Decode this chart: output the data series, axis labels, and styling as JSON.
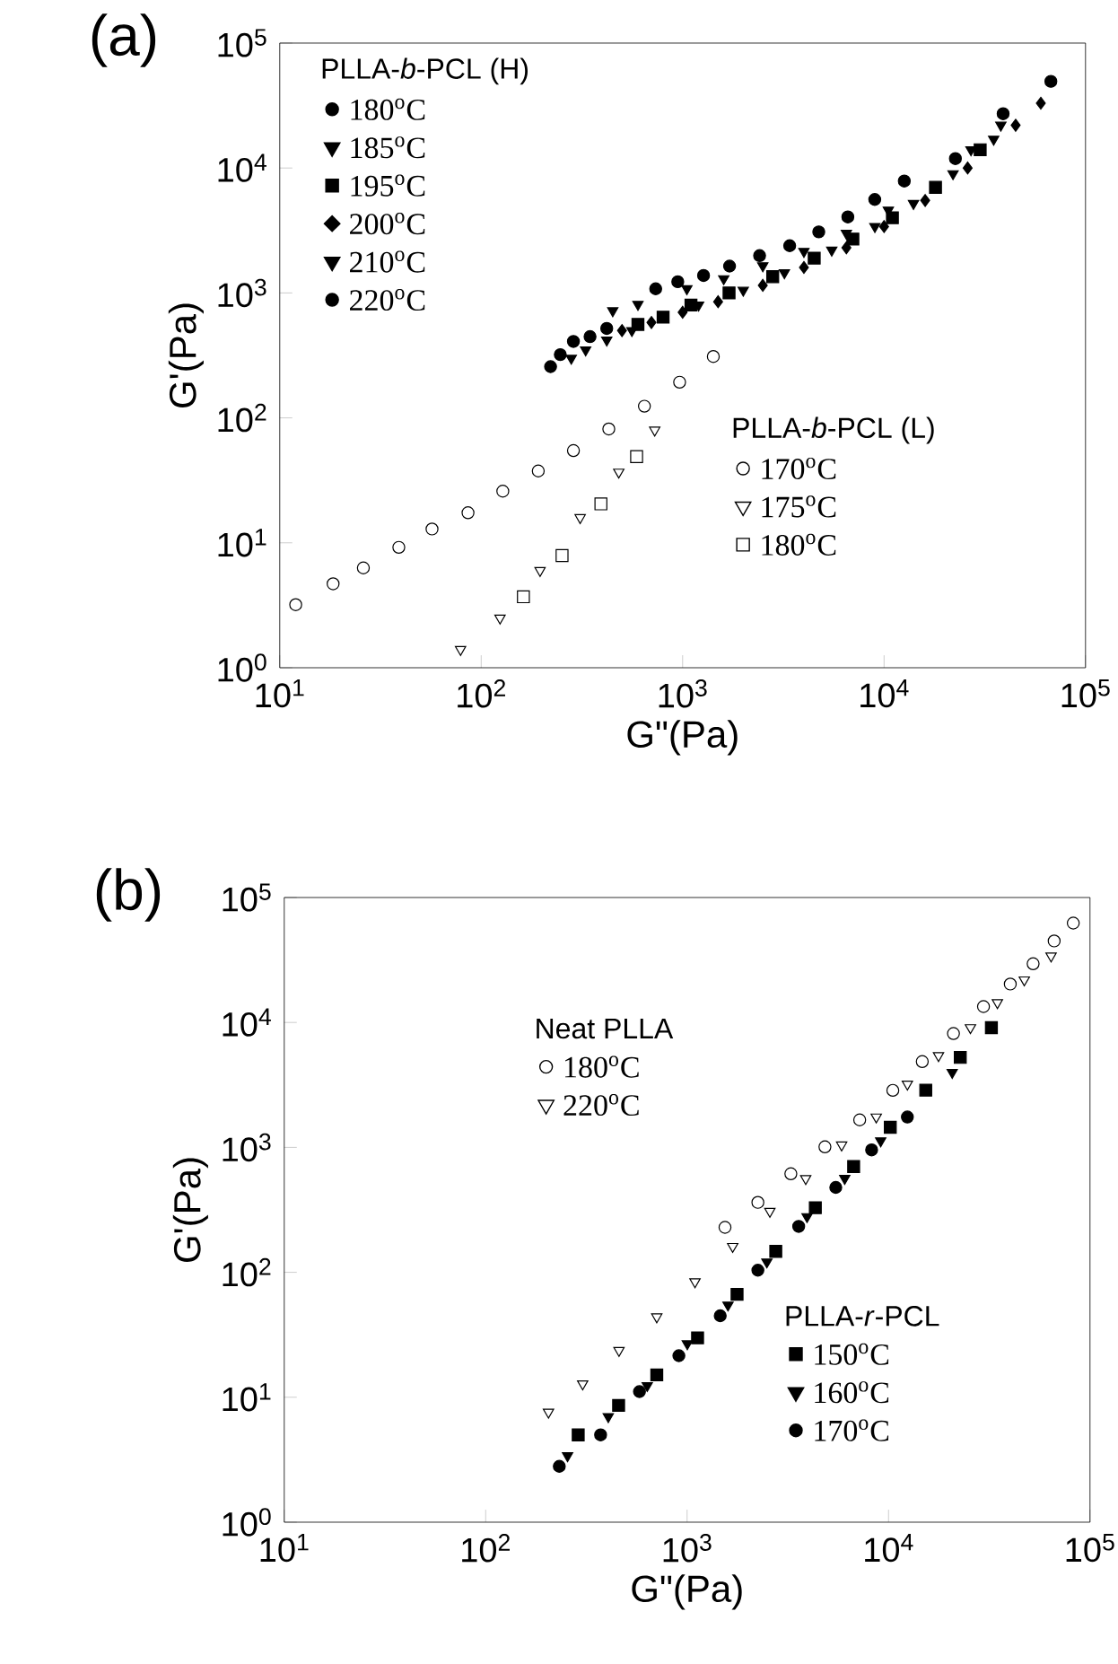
{
  "chart_data": [
    {
      "type": "scatter",
      "title": "(a)",
      "xlabel": "G\"(Pa)",
      "ylabel": "G'(Pa)",
      "log": "xy",
      "legend": "top left",
      "legend_title": "PLLA-*b*-PCL (H)",
      "annotations": [
        "PLLA-*b*-PCL (L)"
      ],
      "xlim": [
        10,
        100000
      ],
      "ylim": [
        1,
        100000
      ],
      "xticks": [
        {
          "value": 10,
          "label": "10$^{1}$"
        },
        {
          "value": 100,
          "label": "10$^{2}$"
        },
        {
          "value": 1000,
          "label": "10$^{3}$"
        },
        {
          "value": 10000,
          "label": "10$^{4}$"
        },
        {
          "value": 100000,
          "label": "10$^{5}$"
        }
      ],
      "yticks": [
        {
          "value": 1,
          "label": "10$^{0}$"
        },
        {
          "value": 10,
          "label": "10$^{1}$"
        },
        {
          "value": 100,
          "label": "10$^{2}$"
        },
        {
          "value": 1000,
          "label": "10$^{3}$"
        },
        {
          "value": 10000,
          "label": "10$^{4}$"
        },
        {
          "value": 100000,
          "label": "10$^{5}$"
        }
      ],
      "series": [
        {
          "name": "180$^{o}$C",
          "color": "#000000",
          "marker": "circle",
          "x": [
            735,
            946,
            1270,
            1710,
            2410,
            3400,
            4740,
            6610,
            8990,
            12600,
            22600,
            39000,
            67300
          ],
          "values": [
            1080,
            1230,
            1380,
            1640,
            1990,
            2390,
            3080,
            4060,
            5600,
            7870,
            11900,
            27200,
            49400
          ]
        },
        {
          "name": "185$^{o}$C",
          "color": "#000000",
          "marker": "triangle",
          "x": [
            450,
            600,
            1050,
            1600,
            2500,
            4000,
            6500,
            10500,
            17000,
            27000,
            38000
          ],
          "values": [
            720,
            810,
            1080,
            1300,
            1650,
            2150,
            3000,
            4600,
            null,
            14000,
            22000
          ]
        },
        {
          "name": "195$^{o}$C",
          "color": "#000000",
          "marker": "square",
          "x": [
            600,
            800,
            1100,
            1700,
            2800,
            4500,
            7000,
            11000,
            18000,
            30000
          ],
          "values": [
            560,
            640,
            800,
            1000,
            1350,
            1900,
            2700,
            4000,
            7000,
            14000
          ]
        },
        {
          "name": "200$^{o}$C",
          "color": "#000000",
          "marker": "diamond",
          "x": [
            500,
            700,
            1000,
            1500,
            2500,
            4000,
            6500,
            10000,
            16000,
            26000,
            45000,
            60000
          ],
          "values": [
            500,
            580,
            700,
            850,
            1150,
            1600,
            2300,
            3400,
            5500,
            10000,
            22000,
            33000
          ]
        },
        {
          "name": "210$^{o}$C",
          "color": "#000000",
          "marker": "triangle",
          "x": [
            280,
            330,
            420,
            560,
            1200,
            2000,
            3200,
            5500,
            9000,
            14000,
            22000,
            35000
          ],
          "values": [
            300,
            350,
            420,
            500,
            800,
            1050,
            1450,
            2200,
            3400,
            5200,
            9000,
            17000
          ]
        },
        {
          "name": "220$^{o}$C",
          "color": "#000000",
          "marker": "circle",
          "x": [
            221,
            247,
            287,
            347,
            420
          ],
          "values": [
            257,
            321,
            409,
            447,
            520
          ]
        },
        {
          "name": "170$^{o}$C",
          "color": "#ffffff",
          "marker": "circle",
          "x": [
            12,
            18.4,
            26,
            39,
            57,
            86,
            128,
            192,
            287,
            430,
            646,
            966,
            1420
          ],
          "values": [
            3.2,
            4.7,
            6.3,
            9.2,
            12.9,
            17.4,
            25.9,
            37.6,
            54.7,
            81.5,
            124,
            193,
            310
          ]
        },
        {
          "name": "175$^{o}$C",
          "color": "#ffffff",
          "marker": "triangle",
          "x": [
            79,
            124,
            196,
            310,
            482,
            727
          ],
          "values": [
            1.4,
            2.5,
            6.0,
            15.9,
            36.8,
            79.8
          ]
        },
        {
          "name": "180$^{o}$C",
          "color": "#ffffff",
          "marker": "square",
          "x": [
            162,
            252,
            393,
            591
          ],
          "values": [
            3.7,
            7.9,
            20.5,
            49
          ]
        }
      ]
    },
    {
      "type": "scatter",
      "title": "(b)",
      "xlabel": "G\"(Pa)",
      "ylabel": "G'(Pa)",
      "log": "xy",
      "legend": "left",
      "legend_title": "Neat PLLA",
      "annotations": [
        "PLLA-*r*-PCL"
      ],
      "xlim": [
        10,
        100000
      ],
      "ylim": [
        1,
        100000
      ],
      "xticks": [
        {
          "value": 10,
          "label": "10$^{1}$"
        },
        {
          "value": 100,
          "label": "10$^{2}$"
        },
        {
          "value": 1000,
          "label": "10$^{3}$"
        },
        {
          "value": 10000,
          "label": "10$^{4}$"
        },
        {
          "value": 100000,
          "label": "10$^{5}$"
        }
      ],
      "yticks": [
        {
          "value": 1,
          "label": "10$^{0}$"
        },
        {
          "value": 10,
          "label": "10$^{1}$"
        },
        {
          "value": 100,
          "label": "10$^{2}$"
        },
        {
          "value": 1000,
          "label": "10$^{3}$"
        },
        {
          "value": 10000,
          "label": "10$^{4}$"
        },
        {
          "value": 100000,
          "label": "10$^{5}$"
        }
      ],
      "series": [
        {
          "name": "180$^{o}$C",
          "color": "#ffffff",
          "marker": "circle",
          "x": [
            1542,
            2245,
            3273,
            4832,
            7190,
            10500,
            14700,
            21000,
            29600,
            40200,
            52200,
            66400,
            82600
          ],
          "values": [
            229,
            363,
            615,
            1010,
            1660,
            2860,
            4860,
            8150,
            13400,
            20300,
            29500,
            44900,
            62400
          ]
        },
        {
          "name": "220$^{o}$C",
          "color": "#ffffff",
          "marker": "triangle",
          "x": [
            205,
            303,
            459,
            707,
            1094,
            1684,
            2575,
            3880,
            5850,
            8690,
            12400,
            17700,
            25500,
            34700,
            47200,
            64100
          ],
          "values": [
            7.6,
            12.8,
            23.7,
            44,
            84,
            161,
            308,
            563,
            1045,
            1750,
            3210,
            5430,
            9080,
            14400,
            21900,
            34000
          ]
        },
        {
          "name": "150$^{o}$C",
          "color": "#000000",
          "marker": "square",
          "x": [
            288,
            457,
            707,
            1127,
            1770,
            2755,
            4330,
            6710,
            10200,
            15300,
            22700,
            32400
          ],
          "values": [
            5.0,
            8.6,
            15.1,
            29.9,
            66.7,
            147,
            329,
            703,
            1450,
            2870,
            5250,
            9080
          ]
        },
        {
          "name": "160$^{o}$C",
          "color": "#000000",
          "marker": "triangle",
          "x": [
            255,
            406,
            634,
            1002,
            1596,
            2489,
            3940,
            6060,
            9140,
            20700
          ],
          "values": [
            3.4,
            7.0,
            12.4,
            26.8,
            54.7,
            121,
            279,
            564,
            1127,
            3980
          ]
        },
        {
          "name": "170$^{o}$C",
          "color": "#000000",
          "marker": "circle",
          "x": [
            232,
            372,
            580,
            910,
            1460,
            2245,
            3580,
            5470,
            8240,
            12400
          ],
          "values": [
            2.8,
            5.0,
            11.1,
            21.5,
            44.9,
            104,
            233,
            478,
            955,
            1750
          ]
        }
      ]
    }
  ]
}
